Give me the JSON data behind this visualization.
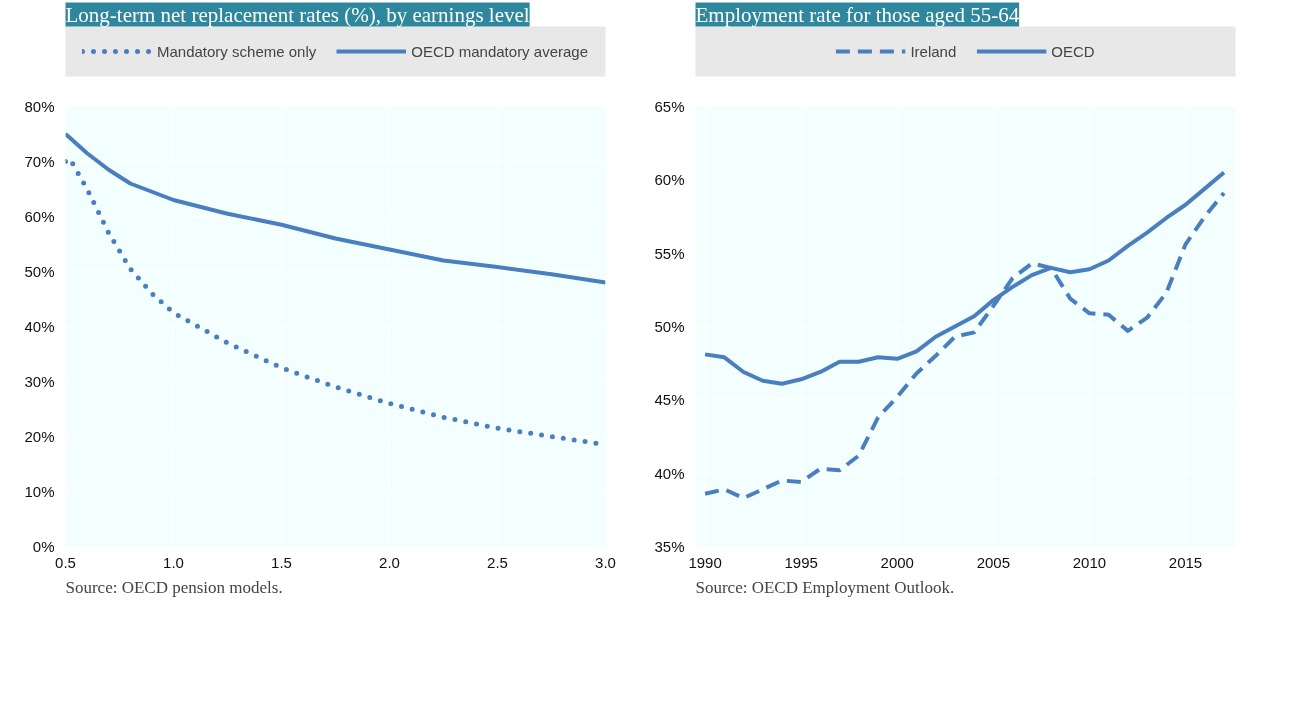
{
  "chart_data": [
    {
      "type": "line",
      "title": "Long-term net replacement rates (%), by earnings level",
      "legend": "top",
      "grid": true,
      "xlim": [
        0.5,
        3.0
      ],
      "ylim": [
        0,
        80
      ],
      "xticks": [
        {
          "value": 0.5,
          "label": "0.5"
        },
        {
          "value": 1.0,
          "label": "1.0"
        },
        {
          "value": 1.5,
          "label": "1.5"
        },
        {
          "value": 2.0,
          "label": "2.0"
        },
        {
          "value": 2.5,
          "label": "2.5"
        },
        {
          "value": 3.0,
          "label": "3.0"
        }
      ],
      "yticks": [
        {
          "value": 0,
          "label": "0%"
        },
        {
          "value": 10,
          "label": "10%"
        },
        {
          "value": 20,
          "label": "20%"
        },
        {
          "value": 30,
          "label": "30%"
        },
        {
          "value": 40,
          "label": "40%"
        },
        {
          "value": 50,
          "label": "50%"
        },
        {
          "value": 60,
          "label": "60%"
        },
        {
          "value": 70,
          "label": "70%"
        },
        {
          "value": 80,
          "label": "80%"
        }
      ],
      "x": [
        0.5,
        0.52,
        0.6,
        0.7,
        0.8,
        0.9,
        1.0,
        1.25,
        1.5,
        1.75,
        2.0,
        2.25,
        2.5,
        2.75,
        3.0
      ],
      "series": [
        {
          "name": "Mandatory scheme only",
          "color": "#4a7ebf",
          "line_style": "dotted",
          "values": [
            70,
            70.5,
            65,
            57,
            50.5,
            46,
            42.5,
            37,
            32.5,
            29,
            26,
            23.5,
            21.5,
            20,
            18.5
          ]
        },
        {
          "name": "OECD mandatory average",
          "color": "#4a7ebf",
          "line_style": "solid",
          "values": [
            75,
            74.3,
            71.5,
            68.5,
            66,
            64.5,
            63,
            60.5,
            58.5,
            56,
            54,
            52,
            50.8,
            49.5,
            48
          ]
        }
      ],
      "annotations": [
        "Source: OECD pension models."
      ]
    },
    {
      "type": "line",
      "title": "Employment rate for those aged 55-64",
      "legend": "top",
      "grid": true,
      "xlim": [
        1989.5,
        2017.6
      ],
      "ylim": [
        35,
        65
      ],
      "xticks": [
        1990,
        1995,
        2000,
        2005,
        2010,
        2015
      ],
      "yticks": [
        {
          "value": 35,
          "label": "35%"
        },
        {
          "value": 40,
          "label": "40%"
        },
        {
          "value": 45,
          "label": "45%"
        },
        {
          "value": 50,
          "label": "50%"
        },
        {
          "value": 55,
          "label": "55%"
        },
        {
          "value": 60,
          "label": "60%"
        },
        {
          "value": 65,
          "label": "65%"
        }
      ],
      "x": [
        1990,
        1991,
        1992,
        1993,
        1994,
        1995,
        1996,
        1997,
        1998,
        1999,
        2000,
        2001,
        2002,
        2003,
        2004,
        2005,
        2006,
        2007,
        2008,
        2009,
        2010,
        2011,
        2012,
        2013,
        2014,
        2015,
        2016,
        2017
      ],
      "series": [
        {
          "name": "Ireland",
          "color": "#4a7ebf",
          "line_style": "dashed",
          "values": [
            38.6,
            38.9,
            38.3,
            38.9,
            39.5,
            39.4,
            40.3,
            40.2,
            41.2,
            43.8,
            45.2,
            46.8,
            48.0,
            49.3,
            49.6,
            51.4,
            53.3,
            54.3,
            54.0,
            51.9,
            50.9,
            50.8,
            49.7,
            50.6,
            52.3,
            55.6,
            57.5,
            59.1
          ]
        },
        {
          "name": "OECD",
          "color": "#4a7ebf",
          "line_style": "solid",
          "values": [
            48.1,
            47.9,
            46.9,
            46.3,
            46.1,
            46.4,
            46.9,
            47.6,
            47.6,
            47.9,
            47.8,
            48.3,
            49.3,
            50.0,
            50.7,
            51.8,
            52.7,
            53.5,
            54.0,
            53.7,
            53.9,
            54.5,
            55.5,
            56.4,
            57.4,
            58.3,
            59.4,
            60.5
          ]
        }
      ],
      "annotations": [
        "Source: OECD Employment Outlook."
      ]
    }
  ]
}
